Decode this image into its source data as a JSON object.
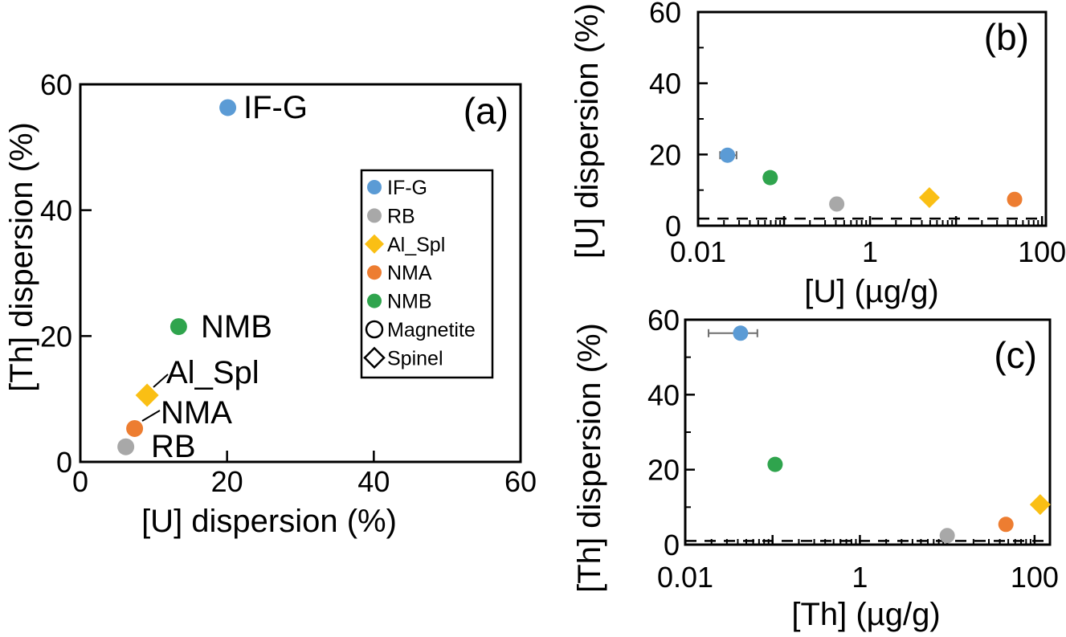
{
  "figure": {
    "background": "#ffffff",
    "line_color": "#000000"
  },
  "chart_data": [
    {
      "id": "a",
      "type": "scatter",
      "panel_label": "(a)",
      "xlabel": "[U] dispersion (%)",
      "ylabel": "[Th] dispersion (%)",
      "xscale": "linear",
      "xlim": [
        0,
        60
      ],
      "ylim": [
        0,
        60
      ],
      "xticks_labeled": [
        [
          0,
          "0"
        ],
        [
          20,
          "20"
        ],
        [
          40,
          "40"
        ],
        [
          60,
          "60"
        ]
      ],
      "yticks_labeled": [
        [
          0,
          "0"
        ],
        [
          20,
          "20"
        ],
        [
          40,
          "40"
        ],
        [
          60,
          "60"
        ]
      ],
      "xtick_marks": [
        20,
        40
      ],
      "ytick_marks": [
        20,
        40
      ],
      "points": [
        {
          "sample": "IF-G",
          "label": "IF-G",
          "marker": "circle",
          "color": "#5B9BD5",
          "x": 20.1,
          "y": 56.3
        },
        {
          "sample": "NMB",
          "label": "NMB",
          "marker": "circle",
          "color": "#2FA44D",
          "x": 13.4,
          "y": 21.5
        },
        {
          "sample": "Al_Spl",
          "label": "Al_Spl",
          "marker": "diamond",
          "color": "#FABF14",
          "x": 9.1,
          "y": 10.6
        },
        {
          "sample": "NMA",
          "label": "NMA",
          "marker": "circle",
          "color": "#ED7D31",
          "x": 7.4,
          "y": 5.3
        },
        {
          "sample": "RB",
          "label": "RB",
          "marker": "circle",
          "color": "#A8A8A8",
          "x": 6.2,
          "y": 2.4
        }
      ],
      "legend": {
        "items": [
          {
            "label": "IF-G",
            "marker": "circle",
            "color": "#5B9BD5"
          },
          {
            "label": "RB",
            "marker": "circle",
            "color": "#A8A8A8"
          },
          {
            "label": "Al_Spl",
            "marker": "diamond",
            "color": "#FABF14"
          },
          {
            "label": "NMA",
            "marker": "circle",
            "color": "#ED7D31"
          },
          {
            "label": "NMB",
            "marker": "circle",
            "color": "#2FA44D"
          },
          {
            "label": "Magnetite",
            "marker": "circle-open",
            "color": "#000000"
          },
          {
            "label": "Spinel",
            "marker": "diamond-open",
            "color": "#000000"
          }
        ]
      }
    },
    {
      "id": "b",
      "type": "scatter",
      "panel_label": "(b)",
      "xlabel": "[U] (µg/g)",
      "ylabel": "[U] dispersion (%)",
      "xscale": "log",
      "xlim": [
        0.01,
        111
      ],
      "ylim": [
        0,
        60
      ],
      "xticks_labeled": [
        [
          0.01,
          "0.01"
        ],
        [
          1,
          "1"
        ],
        [
          100,
          "100"
        ]
      ],
      "yticks_labeled": [
        [
          0,
          "0"
        ],
        [
          20,
          "20"
        ],
        [
          40,
          "40"
        ],
        [
          60,
          "60"
        ]
      ],
      "xtick_marks": [
        0.1,
        1,
        10,
        100
      ],
      "ytick_marks": [
        20,
        40
      ],
      "ytick_minor": [
        10,
        30,
        50
      ],
      "dashed_line_y": 2,
      "points": [
        {
          "sample": "IF-G",
          "marker": "circle",
          "color": "#5B9BD5",
          "x": 0.022,
          "y": 19.8,
          "xerr_range": [
            0.018,
            0.028
          ]
        },
        {
          "sample": "NMB",
          "marker": "circle",
          "color": "#2FA44D",
          "x": 0.069,
          "y": 13.5
        },
        {
          "sample": "RB",
          "marker": "circle",
          "color": "#A8A8A8",
          "x": 0.41,
          "y": 6.1
        },
        {
          "sample": "Al_Spl",
          "marker": "diamond",
          "color": "#FABF14",
          "x": 4.9,
          "y": 7.9
        },
        {
          "sample": "NMA",
          "marker": "circle",
          "color": "#ED7D31",
          "x": 48,
          "y": 7.4
        }
      ]
    },
    {
      "id": "c",
      "type": "scatter",
      "panel_label": "(c)",
      "xlabel": "[Th] (µg/g)",
      "ylabel": "[Th] dispersion (%)",
      "xscale": "log",
      "xlim": [
        0.01,
        150
      ],
      "ylim": [
        0,
        60
      ],
      "xticks_labeled": [
        [
          0.01,
          "0.01"
        ],
        [
          1,
          "1"
        ],
        [
          100,
          "100"
        ]
      ],
      "yticks_labeled": [
        [
          0,
          "0"
        ],
        [
          20,
          "20"
        ],
        [
          40,
          "40"
        ],
        [
          60,
          "60"
        ]
      ],
      "xtick_marks": [
        0.1,
        1,
        10,
        100
      ],
      "ytick_marks": [
        20,
        40
      ],
      "ytick_minor": [
        10,
        30,
        50
      ],
      "dashed_line_y": 1,
      "points": [
        {
          "sample": "IF-G",
          "marker": "circle",
          "color": "#5B9BD5",
          "x": 0.043,
          "y": 56.4,
          "xerr_range": [
            0.0185,
            0.067
          ]
        },
        {
          "sample": "NMB",
          "marker": "circle",
          "color": "#2FA44D",
          "x": 0.107,
          "y": 21.4
        },
        {
          "sample": "RB",
          "marker": "circle",
          "color": "#A8A8A8",
          "x": 10,
          "y": 2.4
        },
        {
          "sample": "NMA",
          "marker": "circle",
          "color": "#ED7D31",
          "x": 47,
          "y": 5.4
        },
        {
          "sample": "Al_Spl",
          "marker": "diamond",
          "color": "#FABF14",
          "x": 116,
          "y": 10.7
        }
      ]
    }
  ]
}
